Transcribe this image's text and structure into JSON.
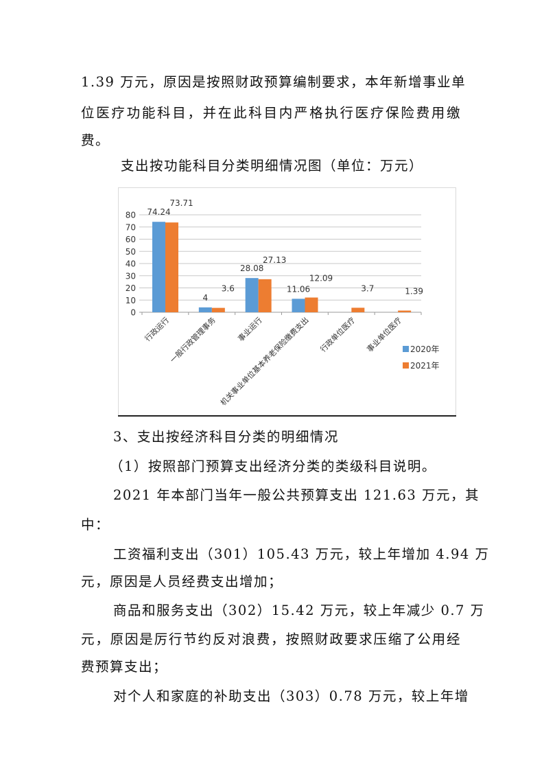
{
  "text_top": [
    "1.39 万元，原因是按照财政预算编制要求，本年新增事业单",
    "位医疗功能科目，并在此科目内严格执行医疗保险费用缴",
    "费。"
  ],
  "caption": "支出按功能科目分类明细情况图（单位：万元）",
  "chart_data": {
    "type": "bar",
    "title": "",
    "categories": [
      "行政运行",
      "一般行政管理事务",
      "事业运行",
      "机关事业单位基本养老保险缴费支出",
      "行政单位医疗",
      "事业单位医疗"
    ],
    "series": [
      {
        "name": "2020年",
        "values": [
          74.24,
          4,
          28.08,
          11.06,
          null,
          null
        ],
        "labels": [
          "74.24",
          "4",
          "28.08",
          "11.06",
          "",
          ""
        ],
        "color": "#5b9bd5"
      },
      {
        "name": "2021年",
        "values": [
          73.71,
          3.6,
          27.13,
          12.09,
          3.7,
          1.39
        ],
        "labels": [
          "73.71",
          "3.6",
          "27.13",
          "12.09",
          "3.7",
          "1.39"
        ],
        "color": "#ed7d31"
      }
    ],
    "yticks": [
      "0",
      "10",
      "20",
      "30",
      "40",
      "50",
      "60",
      "70",
      "80"
    ],
    "ylim": [
      0,
      80
    ],
    "grid": true,
    "legend": "right"
  },
  "paragraphs": [
    "3、支出按经济科目分类的明细情况",
    "（1）按照部门预算支出经济分类的类级科目说明。",
    "2021 年本部门当年一般公共预算支出 121.63 万元，其",
    "中：",
    "工资福利支出（301）105.43 万元，较上年增加 4.94 万",
    "元，原因是人员经费支出增加；",
    "商品和服务支出（302）15.42 万元，较上年减少 0.7 万",
    "元，原因是厉行节约反对浪费，按照财政要求压缩了公用经",
    "费预算支出；",
    "对个人和家庭的补助支出（303）0.78 万元，较上年增"
  ]
}
